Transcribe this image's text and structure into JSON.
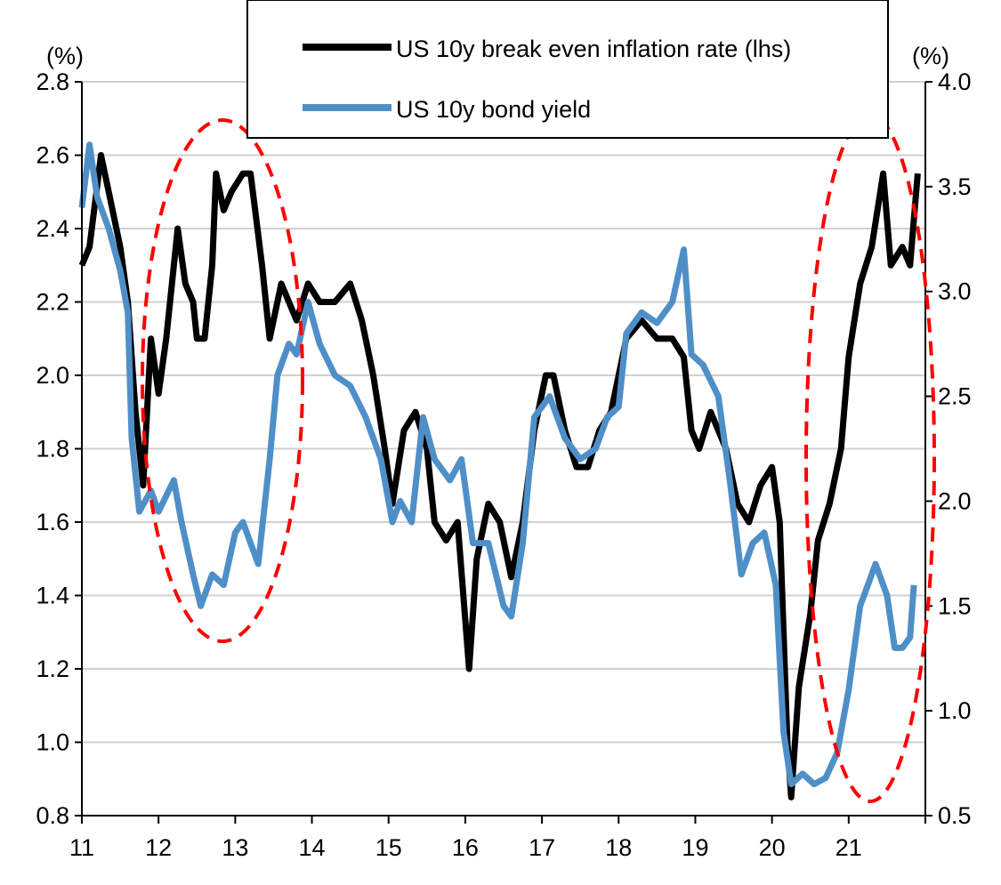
{
  "chart_data": {
    "type": "line",
    "title": "",
    "left_axis": {
      "label": "(%)",
      "ylim": [
        0.8,
        2.8
      ],
      "ticks": [
        0.8,
        1.0,
        1.2,
        1.4,
        1.6,
        1.8,
        2.0,
        2.2,
        2.4,
        2.6,
        2.8
      ],
      "tick_labels": [
        "0.8",
        "1.0",
        "1.2",
        "1.4",
        "1.6",
        "1.8",
        "2.0",
        "2.2",
        "2.4",
        "2.6",
        "2.8"
      ]
    },
    "right_axis": {
      "label": "(%)",
      "ylim": [
        0.5,
        4.0
      ],
      "ticks": [
        0.5,
        1.0,
        1.5,
        2.0,
        2.5,
        3.0,
        3.5,
        4.0
      ],
      "tick_labels": [
        "0.5",
        "1.0",
        "1.5",
        "2.0",
        "2.5",
        "3.0",
        "3.5",
        "4.0"
      ]
    },
    "x_axis": {
      "xlim": [
        11,
        22
      ],
      "ticks": [
        11,
        12,
        13,
        14,
        15,
        16,
        17,
        18,
        19,
        20,
        21
      ],
      "tick_labels": [
        "11",
        "12",
        "13",
        "14",
        "15",
        "16",
        "17",
        "18",
        "19",
        "20",
        "21"
      ]
    },
    "grid": "horizontal",
    "legend_placement": "top-center",
    "series": [
      {
        "name": "US 10y break even inflation rate (lhs)",
        "axis": "left",
        "color": "#000000",
        "x": [
          11.0,
          11.1,
          11.25,
          11.35,
          11.5,
          11.6,
          11.7,
          11.8,
          11.9,
          12.0,
          12.1,
          12.2,
          12.25,
          12.35,
          12.45,
          12.5,
          12.6,
          12.7,
          12.75,
          12.85,
          12.95,
          13.1,
          13.2,
          13.35,
          13.45,
          13.6,
          13.8,
          13.95,
          14.1,
          14.3,
          14.5,
          14.65,
          14.8,
          14.95,
          15.05,
          15.2,
          15.35,
          15.5,
          15.6,
          15.75,
          15.9,
          16.05,
          16.15,
          16.3,
          16.45,
          16.6,
          16.75,
          16.9,
          17.05,
          17.15,
          17.3,
          17.45,
          17.6,
          17.75,
          17.9,
          18.0,
          18.1,
          18.3,
          18.5,
          18.7,
          18.85,
          18.95,
          19.05,
          19.2,
          19.4,
          19.55,
          19.7,
          19.85,
          20.0,
          20.1,
          20.2,
          20.25,
          20.35,
          20.5,
          20.6,
          20.75,
          20.9,
          21.0,
          21.15,
          21.3,
          21.45,
          21.55,
          21.7,
          21.8,
          21.9
        ],
        "y": [
          2.3,
          2.35,
          2.6,
          2.5,
          2.35,
          2.2,
          1.9,
          1.7,
          2.1,
          1.95,
          2.1,
          2.3,
          2.4,
          2.25,
          2.2,
          2.1,
          2.1,
          2.3,
          2.55,
          2.45,
          2.5,
          2.55,
          2.55,
          2.3,
          2.1,
          2.25,
          2.15,
          2.25,
          2.2,
          2.2,
          2.25,
          2.15,
          2.0,
          1.8,
          1.65,
          1.85,
          1.9,
          1.8,
          1.6,
          1.55,
          1.6,
          1.2,
          1.5,
          1.65,
          1.6,
          1.45,
          1.6,
          1.85,
          2.0,
          2.0,
          1.85,
          1.75,
          1.75,
          1.85,
          1.9,
          2.0,
          2.1,
          2.15,
          2.1,
          2.1,
          2.05,
          1.85,
          1.8,
          1.9,
          1.8,
          1.65,
          1.6,
          1.7,
          1.75,
          1.6,
          1.0,
          0.85,
          1.15,
          1.35,
          1.55,
          1.65,
          1.8,
          2.05,
          2.25,
          2.35,
          2.55,
          2.3,
          2.35,
          2.3,
          2.55
        ]
      },
      {
        "name": "US 10y bond yield",
        "axis": "right",
        "color": "#4f8fc8",
        "x": [
          11.0,
          11.1,
          11.2,
          11.35,
          11.5,
          11.6,
          11.65,
          11.75,
          11.9,
          12.0,
          12.2,
          12.3,
          12.45,
          12.55,
          12.7,
          12.85,
          13.0,
          13.1,
          13.3,
          13.45,
          13.55,
          13.7,
          13.8,
          13.95,
          14.1,
          14.3,
          14.5,
          14.7,
          14.9,
          15.05,
          15.15,
          15.3,
          15.45,
          15.6,
          15.8,
          15.95,
          16.1,
          16.3,
          16.5,
          16.6,
          16.75,
          16.9,
          17.1,
          17.3,
          17.5,
          17.7,
          17.85,
          18.0,
          18.1,
          18.3,
          18.5,
          18.7,
          18.85,
          18.95,
          19.1,
          19.3,
          19.45,
          19.6,
          19.75,
          19.9,
          20.05,
          20.15,
          20.25,
          20.4,
          20.55,
          20.7,
          20.85,
          21.0,
          21.15,
          21.25,
          21.35,
          21.5,
          21.6,
          21.7,
          21.8,
          21.85
        ],
        "y": [
          3.4,
          3.7,
          3.45,
          3.3,
          3.1,
          2.9,
          2.3,
          1.95,
          2.05,
          1.95,
          2.1,
          1.9,
          1.65,
          1.5,
          1.65,
          1.6,
          1.85,
          1.9,
          1.7,
          2.2,
          2.6,
          2.75,
          2.7,
          2.95,
          2.75,
          2.6,
          2.55,
          2.4,
          2.2,
          1.9,
          2.0,
          1.9,
          2.4,
          2.2,
          2.1,
          2.2,
          1.8,
          1.8,
          1.5,
          1.45,
          1.8,
          2.4,
          2.5,
          2.3,
          2.2,
          2.25,
          2.4,
          2.45,
          2.8,
          2.9,
          2.85,
          2.95,
          3.2,
          2.7,
          2.65,
          2.5,
          2.1,
          1.65,
          1.8,
          1.85,
          1.6,
          0.9,
          0.65,
          0.7,
          0.65,
          0.68,
          0.8,
          1.1,
          1.5,
          1.6,
          1.7,
          1.55,
          1.3,
          1.3,
          1.35,
          1.6
        ]
      }
    ],
    "annotations": [
      {
        "type": "dashed-ellipse",
        "color": "#ff0000",
        "x_range": [
          12,
          14
        ]
      },
      {
        "type": "dashed-ellipse",
        "color": "#ff0000",
        "x_range": [
          20.4,
          22
        ]
      }
    ]
  }
}
